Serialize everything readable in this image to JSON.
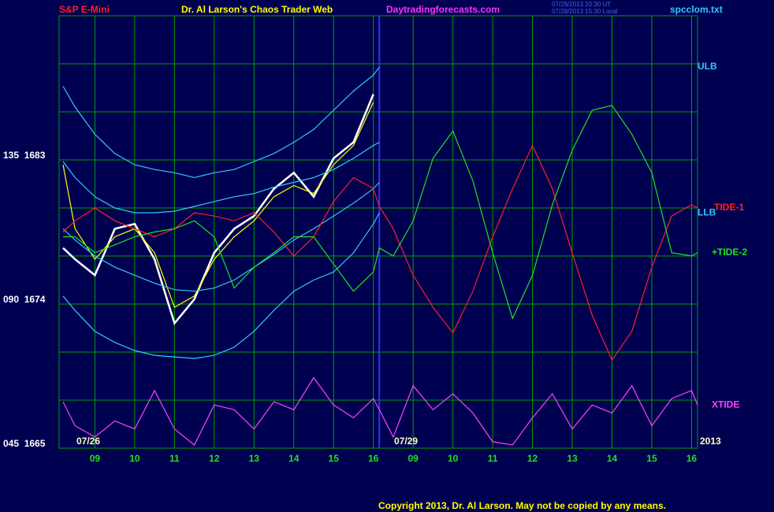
{
  "chart_data": {
    "type": "line",
    "instrument": "S&P E-Mini",
    "title": "Dr. Al Larson's Chaos Trader Web",
    "website": "Daytradingforecasts.com",
    "timestamps": [
      "07/28/2013 20:30 UT",
      "07/28/2013 15:30 Local"
    ],
    "data_file": "spcclom.txt",
    "copyright": "Copyright 2013, Dr. Al Larson. May not be copied by any means.",
    "date_labels": [
      "07/26",
      "07/29",
      "2013"
    ],
    "x": [
      0.2,
      0.5,
      1,
      1.5,
      2,
      2.5,
      3,
      3.5,
      4,
      4.5,
      5,
      5.5,
      6,
      6.5,
      7,
      7.5,
      8,
      8.15,
      8.5,
      9,
      9.5,
      10,
      10.5,
      11,
      11.5,
      12,
      12.5,
      13,
      13.5,
      14,
      14.5,
      15,
      15.5,
      16,
      16.15
    ],
    "xlim": [
      0.1,
      16.15
    ],
    "xticks": [
      {
        "value": 1,
        "label": "09"
      },
      {
        "value": 2,
        "label": "10"
      },
      {
        "value": 3,
        "label": "11"
      },
      {
        "value": 4,
        "label": "12"
      },
      {
        "value": 5,
        "label": "13"
      },
      {
        "value": 6,
        "label": "14"
      },
      {
        "value": 7,
        "label": "15"
      },
      {
        "value": 8,
        "label": "16"
      },
      {
        "value": 9,
        "label": "09"
      },
      {
        "value": 10,
        "label": "10"
      },
      {
        "value": 11,
        "label": "11"
      },
      {
        "value": 12,
        "label": "12"
      },
      {
        "value": 13,
        "label": "13"
      },
      {
        "value": 14,
        "label": "14"
      },
      {
        "value": 15,
        "label": "15"
      },
      {
        "value": 16,
        "label": "16"
      }
    ],
    "ylim": [
      1665,
      1692
    ],
    "yticks": [
      {
        "value": 1683,
        "label": "135  1683"
      },
      {
        "value": 1674,
        "label": "090  1674"
      },
      {
        "value": 1665,
        "label": "045  1665"
      }
    ],
    "ygrid": [
      1668,
      1671,
      1677,
      1680,
      1686,
      1689,
      1692
    ],
    "grid": true,
    "session_break": 8.15,
    "series": [
      {
        "color": "#ffffff",
        "values": [
          1677.5,
          1676.8,
          1675.8,
          1678.7,
          1679.0,
          1676.8,
          1672.8,
          1674.3,
          1677.2,
          1678.7,
          1679.5,
          1681.2,
          1682.2,
          1680.7,
          1683.1,
          1684.1,
          1687.1,
          null,
          null,
          null,
          null,
          null,
          null,
          null,
          null,
          null,
          null,
          null,
          null,
          null,
          null,
          null,
          null,
          null,
          null
        ]
      },
      {
        "color": "#ffff00",
        "values": [
          1682.7,
          1678.7,
          1676.8,
          1678.2,
          1678.7,
          1677.2,
          1673.8,
          1674.5,
          1676.8,
          1678.2,
          1679.2,
          1680.7,
          1681.4,
          1680.9,
          1682.7,
          1683.9,
          1686.6,
          null,
          null,
          null,
          null,
          null,
          null,
          null,
          null,
          null,
          null,
          null,
          null,
          null,
          null,
          null,
          null,
          null,
          null
        ]
      },
      {
        "name": "ULB",
        "color": "#30c8ff",
        "values": [
          1687.6,
          1686.3,
          1684.6,
          1683.4,
          1682.7,
          1682.4,
          1682.2,
          1681.9,
          1682.2,
          1682.4,
          1682.9,
          1683.4,
          1684.1,
          1684.9,
          1686.1,
          1687.3,
          1688.3,
          1688.8,
          null,
          null,
          null,
          null,
          null,
          null,
          null,
          null,
          null,
          null,
          null,
          null,
          null,
          null,
          null,
          null,
          null
        ]
      },
      {
        "color": "#30c8ff",
        "values": [
          1682.9,
          1681.9,
          1680.7,
          1680.0,
          1679.7,
          1679.7,
          1679.8,
          1680.1,
          1680.4,
          1680.7,
          1680.9,
          1681.3,
          1681.6,
          1681.9,
          1682.4,
          1683.1,
          1683.9,
          1684.1,
          null,
          null,
          null,
          null,
          null,
          null,
          null,
          null,
          null,
          null,
          null,
          null,
          null,
          null,
          null,
          null,
          null
        ]
      },
      {
        "color": "#30c8ff",
        "values": [
          1678.7,
          1678.0,
          1677.0,
          1676.3,
          1675.8,
          1675.3,
          1674.9,
          1674.8,
          1675.0,
          1675.5,
          1676.3,
          1677.1,
          1678.0,
          1678.7,
          1679.5,
          1680.3,
          1681.2,
          1681.6,
          null,
          null,
          null,
          null,
          null,
          null,
          null,
          null,
          null,
          null,
          null,
          null,
          null,
          null,
          null,
          null,
          null
        ]
      },
      {
        "name": "LLB",
        "color": "#30c8ff",
        "values": [
          1674.5,
          1673.6,
          1672.3,
          1671.6,
          1671.1,
          1670.8,
          1670.7,
          1670.6,
          1670.8,
          1671.3,
          1672.3,
          1673.6,
          1674.8,
          1675.5,
          1676.0,
          1677.2,
          1679.0,
          1679.7,
          null,
          null,
          null,
          null,
          null,
          null,
          null,
          null,
          null,
          null,
          null,
          null,
          null,
          null,
          null,
          null,
          null
        ]
      },
      {
        "name": "TIDE-1",
        "color": "#ff2020",
        "values": [
          1678.5,
          1679.2,
          1680.0,
          1679.2,
          1678.7,
          1678.2,
          1678.7,
          1679.7,
          1679.5,
          1679.2,
          1679.7,
          1678.5,
          1677.0,
          1678.2,
          1680.4,
          1681.9,
          1681.2,
          1680.1,
          1678.7,
          1675.8,
          1673.8,
          1672.2,
          1674.8,
          1678.2,
          1681.2,
          1683.9,
          1681.2,
          1677.2,
          1673.3,
          1670.5,
          1672.3,
          1676.3,
          1679.5,
          1680.2,
          1680.0
        ]
      },
      {
        "name": "+TIDE-2",
        "color": "#20e020",
        "values": [
          1678.2,
          1678.2,
          1677.2,
          1677.7,
          1678.2,
          1678.5,
          1678.7,
          1679.2,
          1678.2,
          1675.0,
          1676.3,
          1677.2,
          1678.2,
          1678.2,
          1676.5,
          1674.8,
          1676.0,
          1677.5,
          1677.0,
          1679.2,
          1683.1,
          1684.8,
          1681.7,
          1677.2,
          1673.1,
          1675.8,
          1680.2,
          1683.6,
          1686.1,
          1686.4,
          1684.6,
          1682.2,
          1677.2,
          1677.0,
          1677.2
        ]
      },
      {
        "name": "XTIDE",
        "color": "#ff40ff",
        "values": [
          1667.9,
          1666.4,
          1665.7,
          1666.7,
          1666.2,
          1668.6,
          1666.2,
          1665.2,
          1667.7,
          1667.4,
          1666.2,
          1667.9,
          1667.4,
          1669.4,
          1667.7,
          1666.9,
          1668.1,
          1667.4,
          1665.7,
          1668.9,
          1667.4,
          1668.4,
          1667.2,
          1665.4,
          1665.2,
          1666.9,
          1668.4,
          1666.2,
          1667.7,
          1667.2,
          1668.9,
          1666.4,
          1668.1,
          1668.6,
          1667.7
        ]
      }
    ]
  }
}
